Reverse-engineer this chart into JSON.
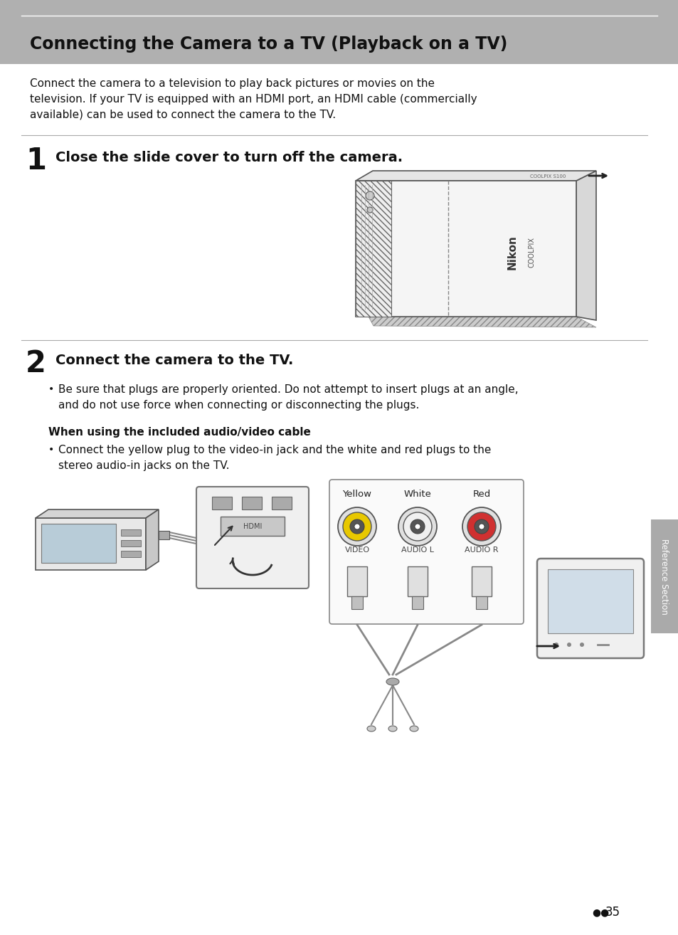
{
  "bg_color": "#ffffff",
  "header_bg": "#b0b0b0",
  "header_line_color": "#ffffff",
  "header_text": "Connecting the Camera to a TV (Playback on a TV)",
  "header_text_color": "#111111",
  "intro_text_line1": "Connect the camera to a television to play back pictures or movies on the",
  "intro_text_line2": "television. If your TV is equipped with an HDMI port, an HDMI cable (commercially",
  "intro_text_line3": "available) can be used to connect the camera to the TV.",
  "step1_num": "1",
  "step1_text": "Close the slide cover to turn off the camera.",
  "step2_num": "2",
  "step2_text": "Connect the camera to the TV.",
  "step2_bullet": "Be sure that plugs are properly oriented. Do not attempt to insert plugs at an angle,\nand do not use force when connecting or disconnecting the plugs.",
  "step2_subheading": "When using the included audio/video cable",
  "step2_subbullet": "Connect the yellow plug to the video-in jack and the white and red plugs to the\nstereo audio-in jacks on the TV.",
  "side_label": "Reference Section",
  "page_icon": "●●",
  "page_num": "35",
  "divider_color": "#aaaaaa",
  "text_color": "#111111",
  "col_labels": [
    "Yellow",
    "White",
    "Red"
  ],
  "col_jack_labels": [
    "VIDEO",
    "AUDIO L",
    "AUDIO R"
  ],
  "col_colors": [
    "#e8c800",
    "#f0f0f0",
    "#d03030"
  ]
}
